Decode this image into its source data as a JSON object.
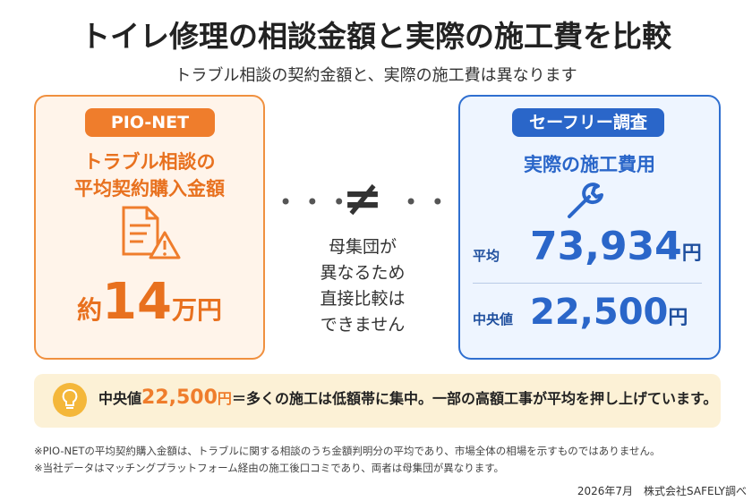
{
  "title": "トイレ修理の相談金額と実際の施工費を比較",
  "subtitle": "トラブル相談の契約金額と、実際の施工費は異なります",
  "left": {
    "badge": "PIO-NET",
    "heading_lines": [
      "トラブル相談の",
      "平均契約購入金額"
    ],
    "amount": {
      "prefix": "約",
      "number": "14",
      "unit": "万円"
    }
  },
  "middle": {
    "symbol": "≠",
    "note_lines": [
      "母集団が",
      "異なるため",
      "直接比較は",
      "できません"
    ]
  },
  "right": {
    "badge": "セーフリー調査",
    "heading": "実際の施工費用",
    "rows": [
      {
        "label": "平均",
        "value": "73,934",
        "unit": "円"
      },
      {
        "label": "中央値",
        "value": "22,500",
        "unit": "円"
      }
    ]
  },
  "callout": {
    "label": "中央値",
    "value": "22,500",
    "unit": "円",
    "text": "＝多くの施工は低額帯に集中。一部の高額工事が平均を押し上げています。"
  },
  "footnotes": [
    "※PIO-NETの平均契約購入金額は、トラブルに関する相談のうち金額判明分の平均であり、市場全体の相場を示すものではありません。",
    "※当社データはマッチングプラットフォーム経由の施工後口コミであり、両者は母集団が異なります。"
  ],
  "credit": {
    "date": "2026年7月",
    "source": "株式会社SAFELY調べ"
  }
}
